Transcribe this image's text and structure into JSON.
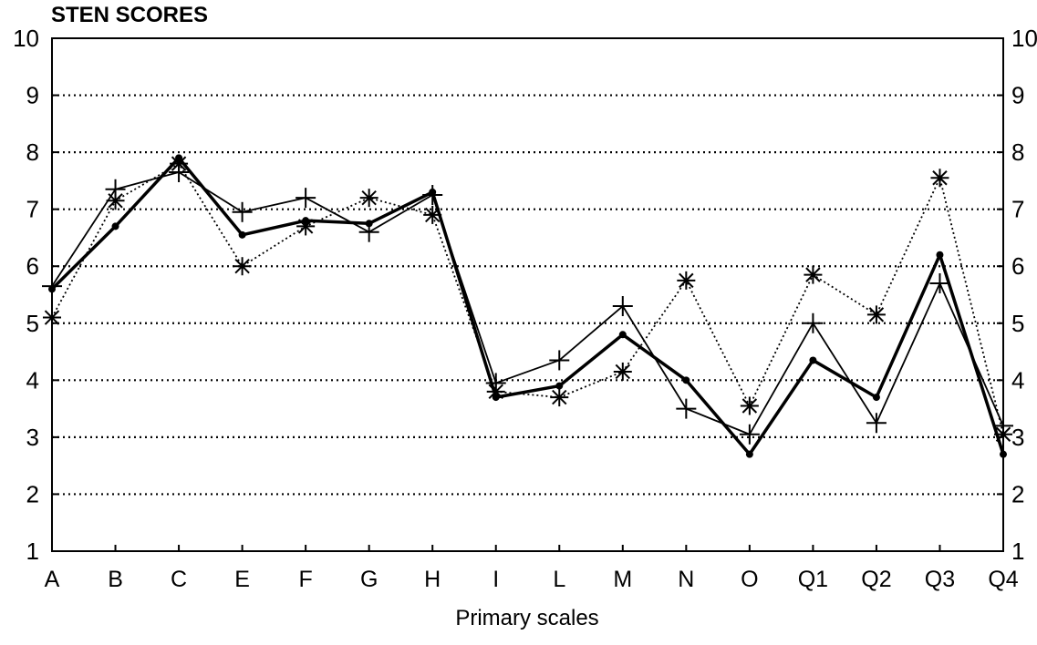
{
  "chart_data": {
    "type": "line",
    "title": "STEN SCORES",
    "xlabel": "Primary scales",
    "ylabel": "",
    "categories": [
      "A",
      "B",
      "C",
      "E",
      "F",
      "G",
      "H",
      "I",
      "L",
      "M",
      "N",
      "O",
      "Q1",
      "Q2",
      "Q3",
      "Q4"
    ],
    "ylim": [
      1,
      10
    ],
    "yticks": [
      "1",
      "2",
      "3",
      "4",
      "5",
      "6",
      "7",
      "8",
      "9",
      "10"
    ],
    "grid": "horizontal dotted",
    "legend": "none",
    "series": [
      {
        "style": "thick solid line, dot markers",
        "values": [
          5.6,
          6.7,
          7.9,
          6.55,
          6.8,
          6.75,
          7.3,
          3.7,
          3.9,
          4.8,
          4.0,
          2.7,
          4.35,
          3.7,
          6.2,
          2.7
        ]
      },
      {
        "style": "thin solid line, plus markers",
        "values": [
          5.65,
          7.35,
          7.65,
          6.95,
          7.2,
          6.6,
          7.25,
          3.95,
          4.35,
          5.3,
          3.5,
          3.05,
          5.0,
          3.25,
          5.7,
          3.2
        ]
      },
      {
        "style": "dotted line, asterisk markers",
        "values": [
          5.1,
          7.15,
          7.8,
          6.0,
          6.7,
          7.2,
          6.9,
          3.8,
          3.7,
          4.15,
          5.75,
          3.55,
          5.85,
          5.15,
          7.55,
          3.05
        ]
      }
    ]
  }
}
